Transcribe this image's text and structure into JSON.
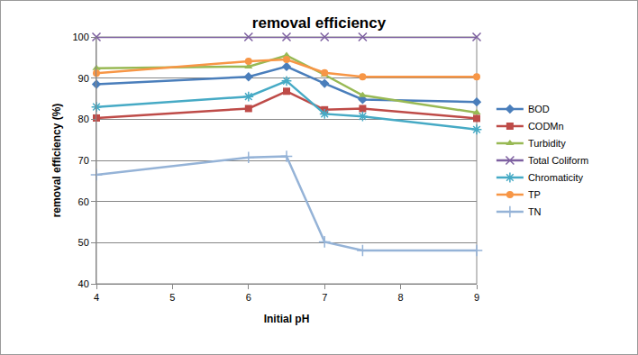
{
  "chart_data": {
    "type": "line",
    "title": "removal efficiency",
    "x_label": "Initial pH",
    "y_label": "removal efficiency (%)",
    "x": [
      4,
      6,
      6.5,
      7,
      7.5,
      9
    ],
    "xlim": [
      4,
      9
    ],
    "xticks": [
      4,
      5,
      6,
      7,
      8,
      9
    ],
    "ylim": [
      40,
      100
    ],
    "yticks": [
      40,
      50,
      60,
      70,
      80,
      90,
      100
    ],
    "grid": true,
    "legend": "right",
    "series": [
      {
        "name": "BOD",
        "color": "#4a7ebb",
        "marker": "diamond",
        "values": [
          88.5,
          90.3,
          92.8,
          88.7,
          84.8,
          84.2
        ]
      },
      {
        "name": "CODMn",
        "color": "#be4b48",
        "marker": "square",
        "values": [
          80.3,
          82.6,
          86.8,
          82.3,
          82.6,
          80.2
        ]
      },
      {
        "name": "Turbidity",
        "color": "#98b954",
        "marker": "triangle",
        "values": [
          92.4,
          92.8,
          95.5,
          90.8,
          85.8,
          81.6
        ]
      },
      {
        "name": "Total Coliform",
        "color": "#7d60a0",
        "marker": "x",
        "values": [
          100,
          100,
          100,
          100,
          100,
          100
        ]
      },
      {
        "name": "Chromaticity",
        "color": "#46aac5",
        "marker": "asterisk",
        "values": [
          83,
          85.5,
          89.3,
          81.3,
          80.7,
          77.5
        ]
      },
      {
        "name": "TP",
        "color": "#f79646",
        "marker": "circle",
        "values": [
          91.2,
          94.1,
          94.5,
          91.3,
          90.3,
          90.3
        ]
      },
      {
        "name": "TN",
        "color": "#95b3d7",
        "marker": "plus",
        "values": [
          66.5,
          70.7,
          71,
          50.2,
          48.1,
          48.1
        ]
      }
    ]
  }
}
